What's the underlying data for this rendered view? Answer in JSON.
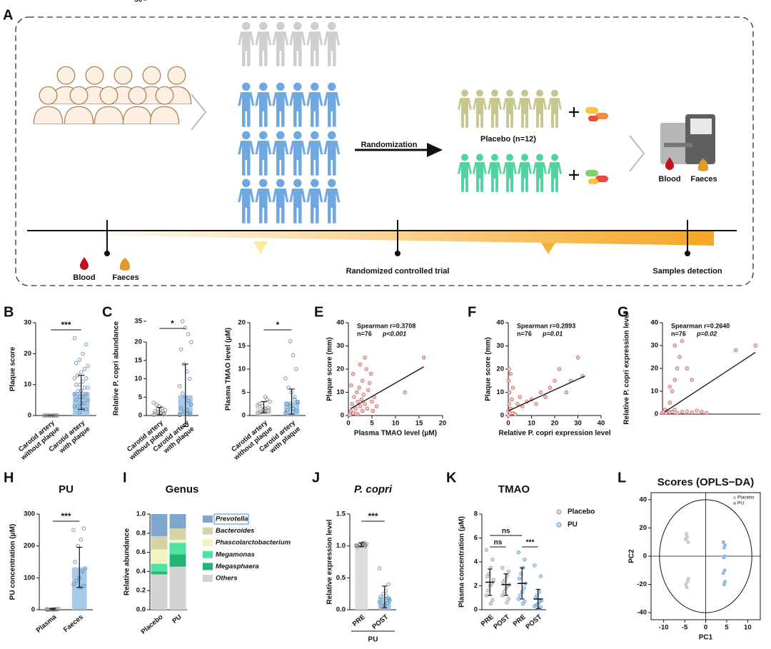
{
  "diagram": {
    "panel": "A",
    "randomization": "Randomization",
    "placebo_group": "Placebo (n=12)",
    "start_samples": [
      "Blood",
      "Faeces"
    ],
    "detection_samples": [
      "Blood",
      "Faeces"
    ],
    "timeline_labels": [
      "Randomized controlled trial",
      "Samples detection"
    ]
  },
  "chart_data": [
    {
      "type": "bar_dot",
      "panel": "B",
      "y_label": "Plaque score",
      "categories": [
        [
          "Carotid artery",
          "without plaque"
        ],
        [
          "Carotid artery",
          "with plaque"
        ]
      ],
      "values": [
        0,
        7.5
      ],
      "errors": [
        0,
        5.5
      ],
      "points": [
        [
          0,
          0,
          0,
          0,
          0,
          0,
          0,
          0,
          0,
          0,
          0,
          0
        ],
        [
          25,
          23,
          20,
          18,
          17,
          16,
          15,
          14,
          13,
          12,
          12,
          11,
          10,
          10,
          9,
          9,
          8,
          8,
          7,
          7,
          6,
          6,
          5,
          5,
          4,
          4,
          3,
          3,
          2,
          2,
          1
        ]
      ],
      "colors": [
        "#d9d9d9",
        "#9dc3e6"
      ],
      "point_colors": [
        "#777777",
        "#5b7fa6"
      ],
      "ylim": [
        0,
        30
      ],
      "yticks": [
        0,
        10,
        20,
        30
      ],
      "significance": "***"
    },
    {
      "type": "bar_dot",
      "panel": "C",
      "y_label": "Relative P. copri abundance",
      "categories": [
        [
          "Carotid artery",
          "without plaque"
        ],
        [
          "Carotid artery",
          "with plaque"
        ]
      ],
      "values": [
        1.2,
        5.5
      ],
      "errors": [
        1.0,
        8.5
      ],
      "points": [
        [
          0.2,
          0.5,
          0.8,
          1,
          1.2,
          1.5,
          2,
          2.5,
          3,
          3.5,
          0.3,
          0.6,
          1.8
        ],
        [
          0.1,
          0.3,
          0.5,
          1,
          2,
          3,
          4,
          5,
          6,
          8,
          10,
          12,
          14,
          18,
          20,
          31,
          33,
          35,
          0.2,
          0.6,
          1.5
        ]
      ],
      "colors": [
        "#d9d9d9",
        "#9dc3e6"
      ],
      "point_colors": [
        "#777777",
        "#5b7fa6"
      ],
      "ylim": [
        0,
        35
      ],
      "ybreak": [
        20,
        30
      ],
      "yticks": [
        0,
        5,
        10,
        15,
        20,
        30,
        35
      ],
      "significance": "*"
    },
    {
      "type": "bar_dot",
      "y_label": "Plasma TMAO level (μM)",
      "categories": [
        [
          "Carotid artery",
          "without plaque"
        ],
        [
          "Carotid artery",
          "with plaque"
        ]
      ],
      "values": [
        1.8,
        3
      ],
      "errors": [
        1.2,
        2.7
      ],
      "points": [
        [
          0.5,
          1,
          1.5,
          2,
          2.5,
          3,
          3.5,
          1.2,
          0.8,
          2.2,
          1.7,
          4
        ],
        [
          0.5,
          1,
          1.5,
          2,
          2.5,
          3,
          4,
          5,
          6,
          8,
          10,
          13,
          16,
          1.2,
          2.8,
          3.5
        ]
      ],
      "colors": [
        "#d9d9d9",
        "#9dc3e6"
      ],
      "point_colors": [
        "#777777",
        "#5b7fa6"
      ],
      "ylim": [
        0,
        20
      ],
      "yticks": [
        0,
        5,
        10,
        15,
        20
      ],
      "significance": "*"
    },
    {
      "type": "scatter",
      "panel": "E",
      "x_label": "Plasma TMAO level (μM)",
      "y_label": "Plaque score (mm)",
      "annotations": [
        "Spearman r=0.3708",
        "n=76",
        "p<0.001"
      ],
      "color": "#f2c4c4",
      "edge_color": "#c55a5a",
      "points": [
        [
          0.5,
          2
        ],
        [
          0.8,
          5
        ],
        [
          1,
          1
        ],
        [
          1.2,
          8
        ],
        [
          1.5,
          3
        ],
        [
          1.8,
          10
        ],
        [
          2,
          0.5
        ],
        [
          2,
          6
        ],
        [
          2.3,
          12
        ],
        [
          2.5,
          4
        ],
        [
          2.8,
          7
        ],
        [
          3,
          2
        ],
        [
          3,
          15
        ],
        [
          3.2,
          9
        ],
        [
          3.5,
          5
        ],
        [
          3.8,
          20
        ],
        [
          4,
          3
        ],
        [
          4.2,
          11
        ],
        [
          4.5,
          14
        ],
        [
          5,
          6
        ],
        [
          5.2,
          2
        ],
        [
          5.5,
          8
        ],
        [
          1,
          18
        ],
        [
          2.5,
          22
        ],
        [
          3.5,
          25
        ],
        [
          6,
          4
        ],
        [
          0.3,
          0.2
        ],
        [
          1.6,
          0.8
        ],
        [
          12,
          10
        ],
        [
          16,
          25
        ],
        [
          4.8,
          18
        ],
        [
          0.6,
          13
        ]
      ],
      "fit": [
        [
          0.5,
          3
        ],
        [
          16,
          21
        ]
      ],
      "xlim": [
        0,
        20
      ],
      "xticks": [
        0,
        5,
        10,
        15,
        20
      ],
      "ylim": [
        0,
        40
      ],
      "yticks": [
        0,
        10,
        20,
        30,
        40
      ]
    },
    {
      "type": "scatter",
      "panel": "F",
      "x_label": "Relative P. copri expression level",
      "y_label": "Plaque score (mm)",
      "annotations": [
        "Spearman r=0.2893",
        "n=76",
        "p=0.01"
      ],
      "color": "#f2c4c4",
      "edge_color": "#c55a5a",
      "points": [
        [
          0,
          0
        ],
        [
          0,
          2
        ],
        [
          0.3,
          5
        ],
        [
          0.5,
          10
        ],
        [
          0.2,
          15
        ],
        [
          0.4,
          20
        ],
        [
          0.8,
          1
        ],
        [
          1,
          3
        ],
        [
          1.5,
          7
        ],
        [
          2,
          1
        ],
        [
          2,
          12
        ],
        [
          3,
          0.5
        ],
        [
          4,
          5
        ],
        [
          5,
          8
        ],
        [
          6,
          4
        ],
        [
          8,
          6
        ],
        [
          10,
          7
        ],
        [
          12,
          5
        ],
        [
          14,
          10
        ],
        [
          16,
          8
        ],
        [
          20,
          15
        ],
        [
          22,
          20
        ],
        [
          27,
          15
        ],
        [
          30,
          25
        ],
        [
          32,
          17
        ],
        [
          25,
          10
        ],
        [
          18,
          12
        ],
        [
          1,
          18
        ]
      ],
      "fit": [
        [
          0,
          2
        ],
        [
          33,
          17
        ]
      ],
      "xlim": [
        0,
        40
      ],
      "xticks": [
        0,
        10,
        20,
        30,
        40
      ],
      "ylim": [
        0,
        40
      ],
      "yticks": [
        0,
        10,
        20,
        30,
        40
      ]
    },
    {
      "type": "scatter",
      "panel": "G",
      "y_label": "Relative P. copri expression level",
      "annotations": [
        "Spearman r=0.2640",
        "n=76",
        "p=0.02"
      ],
      "color": "#f2c4c4",
      "edge_color": "#c55a5a",
      "points": [
        [
          0,
          0.5
        ],
        [
          0.5,
          1
        ],
        [
          1,
          2
        ],
        [
          1.5,
          0.5
        ],
        [
          2,
          1.5
        ],
        [
          3,
          0.8
        ],
        [
          4,
          1
        ],
        [
          5,
          2
        ],
        [
          6,
          0.5
        ],
        [
          8,
          1
        ],
        [
          10,
          1.2
        ],
        [
          12,
          0.8
        ],
        [
          14,
          1.5
        ],
        [
          16,
          1
        ],
        [
          18,
          0.5
        ],
        [
          3,
          5
        ],
        [
          4,
          10
        ],
        [
          5,
          15
        ],
        [
          6,
          20
        ],
        [
          7,
          25
        ],
        [
          5,
          30
        ],
        [
          8,
          32
        ],
        [
          10,
          20
        ],
        [
          12,
          15
        ],
        [
          3,
          12
        ],
        [
          30,
          28
        ],
        [
          38,
          30
        ]
      ],
      "fit": [
        [
          1,
          1
        ],
        [
          38,
          27
        ]
      ],
      "xlim": [
        0,
        40
      ],
      "ylim": [
        0,
        40
      ],
      "yticks": [
        0,
        10,
        20,
        30,
        40
      ]
    },
    {
      "type": "bar_dot",
      "panel": "H",
      "title": "PU",
      "y_label": "PU concentration (μM)",
      "categories": [
        "Plasma",
        "Faeces"
      ],
      "values": [
        2,
        133
      ],
      "errors": [
        2,
        63
      ],
      "points": [
        [
          0,
          1,
          2,
          1,
          0,
          3,
          2,
          1,
          0,
          2,
          1,
          0
        ],
        [
          250,
          255,
          220,
          200,
          150,
          130,
          120,
          100,
          90,
          80,
          75,
          70
        ]
      ],
      "colors": [
        "#d9d9d9",
        "#9dc3e6"
      ],
      "point_colors": [
        "#777777",
        "#5b7fa6"
      ],
      "ylim": [
        0,
        300
      ],
      "yticks": [
        0,
        100,
        200,
        300
      ],
      "significance": "***"
    },
    {
      "type": "stacked",
      "panel": "I",
      "title": "Genus",
      "y_label": "Relative abundance",
      "categories": [
        "Placebo",
        "PU"
      ],
      "series": [
        {
          "name": "Others",
          "color": "#d3d3d3",
          "values": [
            0.37,
            0.45
          ]
        },
        {
          "name": "Megasphaera",
          "color": "#22b573",
          "values": [
            0.03,
            0.13
          ]
        },
        {
          "name": "Megamonas",
          "color": "#4fe3a2",
          "values": [
            0.08,
            0.12
          ]
        },
        {
          "name": "Phascolarctobacterium",
          "color": "#f5f3c2",
          "values": [
            0.15,
            0.03
          ]
        },
        {
          "name": "Bacteroides",
          "color": "#d8d3a6",
          "values": [
            0.14,
            0.12
          ]
        },
        {
          "name": "Prevotella",
          "color": "#7ea6cf",
          "values": [
            0.23,
            0.15
          ]
        }
      ],
      "ylim": [
        0,
        1
      ],
      "yticks": [
        {
          "value": 0,
          "label": "0.0"
        },
        {
          "value": 0.2,
          "label": "0.2"
        },
        {
          "value": 0.4,
          "label": "0.4"
        },
        {
          "value": 0.6,
          "label": "0.6"
        },
        {
          "value": 0.8,
          "label": "0.8"
        },
        {
          "value": 1,
          "label": "1.0"
        }
      ]
    },
    {
      "type": "bar_dot",
      "panel": "J",
      "title": "P. copri",
      "y_label": "Relative expression level",
      "categories": [
        "PRE",
        "POST"
      ],
      "group_label": "PU",
      "values": [
        1.02,
        0.2
      ],
      "errors": [
        0.03,
        0.17
      ],
      "points": [
        [
          1.0,
          1.02,
          1.04,
          1.01,
          0.99,
          1.03,
          1.05,
          1.0,
          1.02,
          1.01,
          1.0,
          1.03
        ],
        [
          0.65,
          0.4,
          0.3,
          0.25,
          0.2,
          0.15,
          0.1,
          0.08,
          0.05,
          0.12,
          0.18,
          0.22
        ]
      ],
      "colors": [
        "#d9d9d9",
        "#9dc3e6"
      ],
      "point_colors": [
        "#777777",
        "#5b7fa6"
      ],
      "ylim": [
        0,
        1.5
      ],
      "yticks": [
        {
          "value": 0,
          "label": "0.0"
        },
        {
          "value": 0.5,
          "label": "0.5"
        },
        {
          "value": 1,
          "label": "1.0"
        },
        {
          "value": 1.5,
          "label": "1.5"
        }
      ],
      "significance": "***"
    },
    {
      "type": "dot_error",
      "panel": "K",
      "title": "TMAO",
      "y_label": "Plasma concentration (μM)",
      "categories": [
        "PRE",
        "POST"
      ],
      "series": [
        {
          "name": "Placebo",
          "color": "#9a9a9a",
          "values": [
            2.3,
            2.1
          ],
          "errors": [
            1.1,
            0.9
          ],
          "points": [
            [
              5.0,
              4.2,
              3.5,
              3,
              2.8,
              2.5,
              2.2,
              2,
              1.6,
              1.2,
              0.8,
              0.5
            ],
            [
              3.5,
              3.2,
              2.8,
              2.5,
              2.3,
              2.1,
              2,
              1.8,
              1.5,
              1.2,
              0.9,
              0.6
            ]
          ]
        },
        {
          "name": "PU",
          "color": "#5b9bd5",
          "values": [
            2.2,
            0.9
          ],
          "errors": [
            1.3,
            0.8
          ],
          "points": [
            [
              4.8,
              4.2,
              3.5,
              3,
              2.6,
              2.2,
              1.8,
              1.5,
              1.2,
              0.9,
              0.7,
              0.5
            ],
            [
              3.7,
              2.8,
              1.5,
              1.2,
              1,
              0.8,
              0.7,
              0.5,
              0.4,
              0.3,
              0.2,
              0.1
            ]
          ]
        }
      ],
      "comparisons": [
        "ns",
        "ns",
        "***"
      ],
      "ylim": [
        0,
        8
      ],
      "yticks": [
        0,
        2,
        4,
        6,
        8
      ]
    },
    {
      "type": "score_plot",
      "panel": "L",
      "title": "Scores (OPLS−DA)",
      "x_label": "PC1",
      "y_label": "PC2",
      "series": [
        {
          "name": "Placebo",
          "color": "#c8c8c8",
          "points": [
            [
              -4.6,
              16
            ],
            [
              -4.4,
              14
            ],
            [
              -4.8,
              12
            ],
            [
              -4.2,
              10
            ],
            [
              -4.5,
              13
            ],
            [
              -4.3,
              -18
            ],
            [
              -4.7,
              -20
            ],
            [
              -4.5,
              -22
            ],
            [
              -4.1,
              -16
            ]
          ]
        },
        {
          "name": "PU",
          "color": "#8db8e8",
          "points": [
            [
              4.2,
              10
            ],
            [
              4.6,
              8
            ],
            [
              4.4,
              6
            ],
            [
              4.5,
              0
            ],
            [
              4.3,
              -1
            ],
            [
              4.5,
              -10
            ],
            [
              4.2,
              -12
            ],
            [
              4.6,
              -18
            ],
            [
              4.4,
              -20
            ]
          ]
        }
      ],
      "xlim": [
        -13,
        13
      ],
      "xticks": [
        -10,
        -5,
        0,
        5,
        10
      ],
      "ylim": [
        -45,
        45
      ],
      "yticks": [
        -40,
        -20,
        0,
        20,
        40
      ]
    }
  ]
}
